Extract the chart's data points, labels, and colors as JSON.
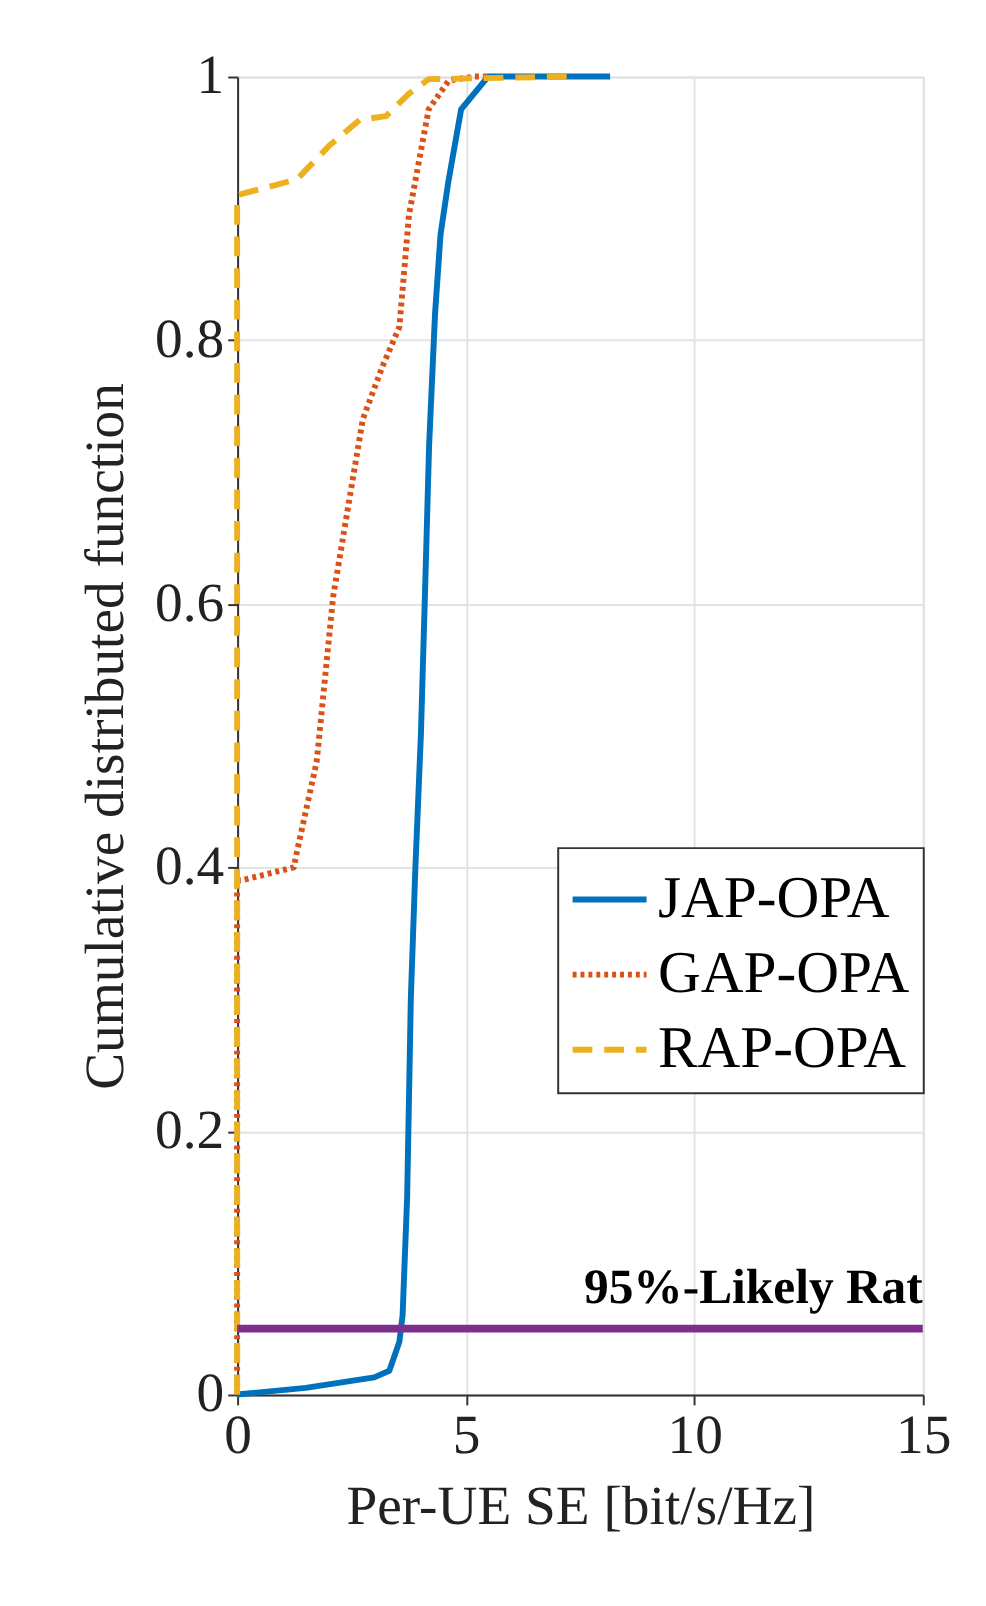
{
  "chart_data": {
    "type": "line",
    "xlabel": "Per-UE SE [bit/s/Hz]",
    "ylabel": "Cumulative distributed function",
    "xlim": [
      0,
      15
    ],
    "ylim": [
      0,
      1
    ],
    "xticks": [
      0,
      5,
      10,
      15
    ],
    "yticks": [
      0,
      0.2,
      0.4,
      0.6,
      0.8,
      1
    ],
    "grid": true,
    "legend": "right",
    "marker": "none",
    "series": [
      {
        "name": "JAP-OPA",
        "color": "#0072bd",
        "line_style": "solid",
        "x": [
          0,
          1.5,
          3.0,
          3.33,
          3.55,
          3.62,
          3.72,
          3.8,
          3.9,
          4.02,
          4.12,
          4.2,
          4.33,
          4.45,
          4.62,
          4.9,
          5.49,
          8.16
        ],
        "values": [
          0,
          0.005,
          0.013,
          0.018,
          0.04,
          0.06,
          0.15,
          0.3,
          0.4,
          0.5,
          0.62,
          0.72,
          0.82,
          0.88,
          0.92,
          0.975,
          1.0,
          1.0
        ]
      },
      {
        "name": "GAP-OPA",
        "color": "#d95319",
        "line_style": "dotted",
        "x": [
          0,
          0,
          0.09,
          1.24,
          1.31,
          1.74,
          2.1,
          2.46,
          2.75,
          3.18,
          3.55,
          3.76,
          4.19,
          4.63,
          5.2,
          5.5
        ],
        "values": [
          0,
          0.39,
          0.39,
          0.4,
          0.412,
          0.48,
          0.605,
          0.68,
          0.74,
          0.78,
          0.81,
          0.895,
          0.975,
          0.997,
          1.0,
          1.0
        ]
      },
      {
        "name": "RAP-OPA",
        "color": "#edb120",
        "line_style": "dashed",
        "x": [
          0,
          0,
          1.31,
          2.03,
          2.68,
          3.26,
          3.76,
          4.19,
          7.3
        ],
        "values": [
          0,
          0.91,
          0.922,
          0.948,
          0.967,
          0.97,
          0.987,
          0.998,
          1.0
        ]
      }
    ],
    "ref_lines": [
      {
        "axis": "y",
        "value": 0.05,
        "label": "95%-Likely Rat",
        "color": "#7e2f8e"
      }
    ]
  }
}
